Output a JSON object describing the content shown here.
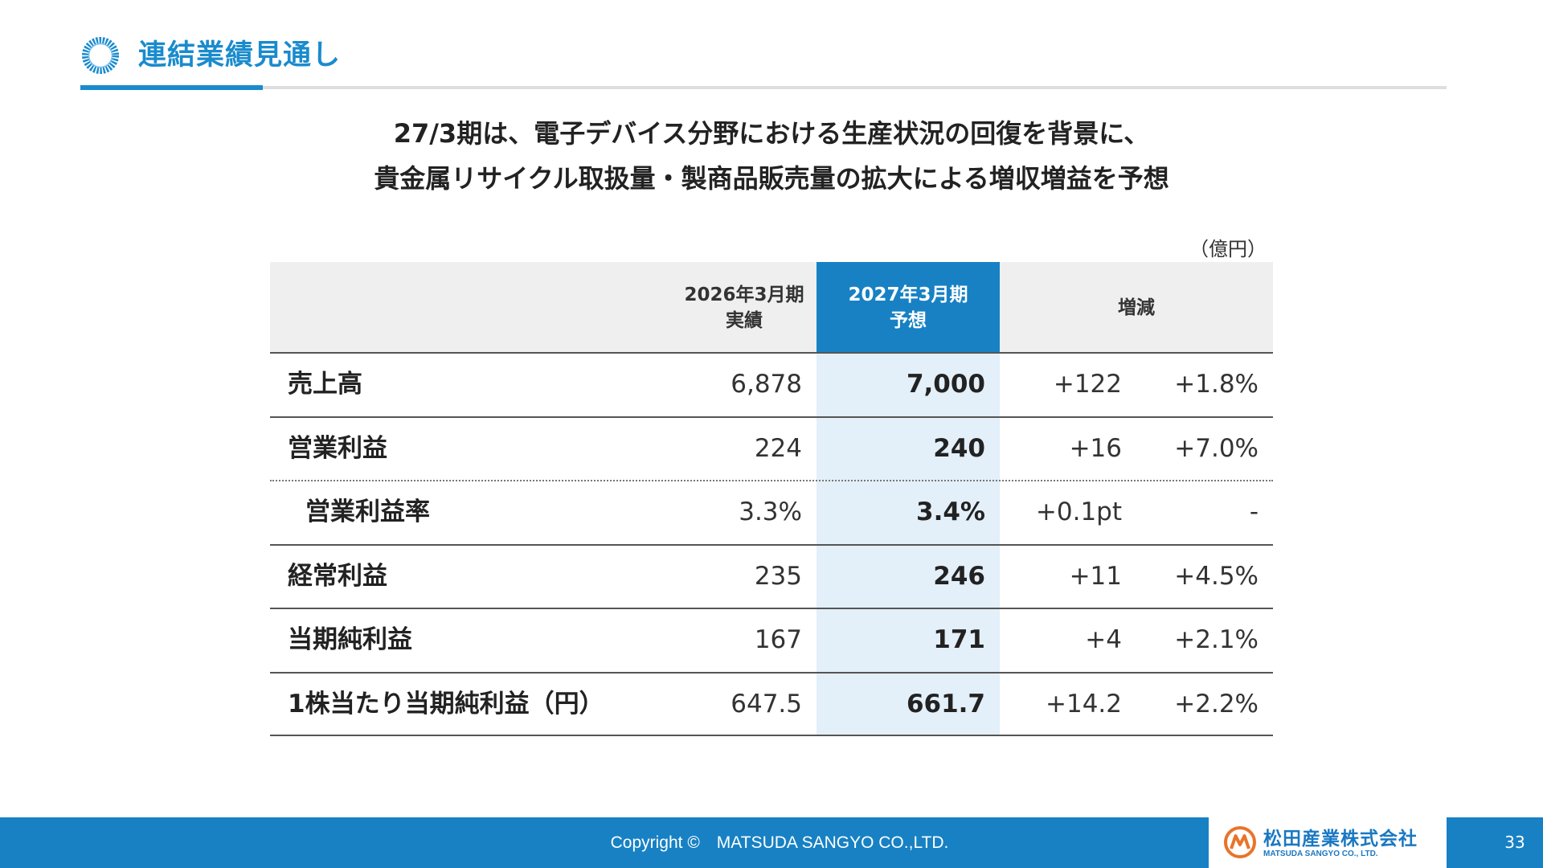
{
  "header": {
    "title": "連結業績見通し"
  },
  "headline": {
    "line1": "27/3期は、電子デバイス分野における生産状況の回復を背景に、",
    "line2": "貴金属リサイクル取扱量・製商品販売量の拡大による増収増益を予想"
  },
  "table": {
    "unit": "（億円）",
    "columns": {
      "prev_line1": "2026年3月期",
      "prev_line2": "実績",
      "curr_line1": "2027年3月期",
      "curr_line2": "予想",
      "change": "増減"
    },
    "rows": [
      {
        "label": "売上高",
        "prev": "6,878",
        "curr": "7,000",
        "diff": "+122",
        "pct": "+1.8%"
      },
      {
        "label": "営業利益",
        "prev": "224",
        "curr": "240",
        "diff": "+16",
        "pct": "+7.0%"
      },
      {
        "label": "営業利益率",
        "prev": "3.3%",
        "curr": "3.4%",
        "diff": "+0.1pt",
        "pct": "-"
      },
      {
        "label": "経常利益",
        "prev": "235",
        "curr": "246",
        "diff": "+11",
        "pct": "+4.5%"
      },
      {
        "label": "当期純利益",
        "prev": "167",
        "curr": "171",
        "diff": "+4",
        "pct": "+2.1%"
      },
      {
        "label": "1株当たり当期純利益（円）",
        "prev": "647.5",
        "curr": "661.7",
        "diff": "+14.2",
        "pct": "+2.2%"
      }
    ]
  },
  "footer": {
    "copyright": "Copyright ©　MATSUDA SANGYO CO.,LTD.",
    "logo_jp": "松田産業株式会社",
    "logo_en": "MATSUDA SANGYO CO., LTD.",
    "page_number": "33"
  },
  "colors": {
    "accent": "#1781c4",
    "title": "#1a8bcd",
    "highlight_column": "#e3eff9",
    "header_row": "#efefef",
    "logo_orange": "#e8742a"
  },
  "icons": [
    "ring-icon",
    "company-logo-icon"
  ]
}
